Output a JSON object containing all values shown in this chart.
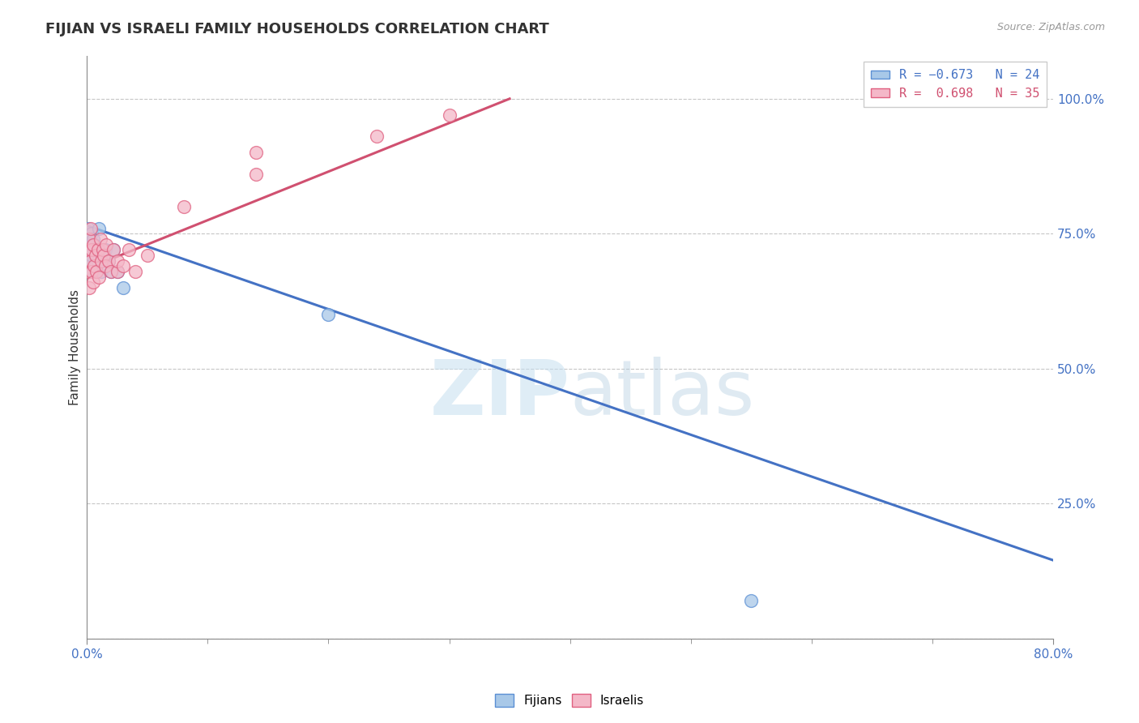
{
  "title": "FIJIAN VS ISRAELI FAMILY HOUSEHOLDS CORRELATION CHART",
  "source": "Source: ZipAtlas.com",
  "ylabel": "Family Households",
  "yticks": [
    0.0,
    0.25,
    0.5,
    0.75,
    1.0
  ],
  "ytick_labels": [
    "",
    "25.0%",
    "50.0%",
    "75.0%",
    "100.0%"
  ],
  "xlim": [
    0.0,
    0.8
  ],
  "ylim": [
    0.0,
    1.08
  ],
  "fijian_color": "#a8c8e8",
  "israeli_color": "#f4b8c8",
  "fijian_edge_color": "#5b8fd4",
  "israeli_edge_color": "#e06080",
  "fijian_line_color": "#4472c4",
  "israeli_line_color": "#d05070",
  "fijian_R": -0.673,
  "fijian_N": 24,
  "israeli_R": 0.698,
  "israeli_N": 35,
  "fijian_x": [
    0.001,
    0.002,
    0.002,
    0.003,
    0.003,
    0.004,
    0.004,
    0.005,
    0.005,
    0.006,
    0.007,
    0.007,
    0.008,
    0.009,
    0.01,
    0.012,
    0.015,
    0.018,
    0.02,
    0.022,
    0.025,
    0.03,
    0.2,
    0.55
  ],
  "fijian_y": [
    0.76,
    0.74,
    0.72,
    0.73,
    0.7,
    0.75,
    0.71,
    0.74,
    0.68,
    0.73,
    0.71,
    0.69,
    0.72,
    0.7,
    0.76,
    0.68,
    0.72,
    0.7,
    0.68,
    0.72,
    0.68,
    0.65,
    0.6,
    0.07
  ],
  "israeli_x": [
    0.001,
    0.001,
    0.002,
    0.002,
    0.003,
    0.003,
    0.004,
    0.004,
    0.005,
    0.005,
    0.006,
    0.007,
    0.008,
    0.009,
    0.01,
    0.011,
    0.012,
    0.013,
    0.014,
    0.015,
    0.016,
    0.018,
    0.02,
    0.022,
    0.025,
    0.025,
    0.03,
    0.035,
    0.04,
    0.05,
    0.08,
    0.14,
    0.14,
    0.24,
    0.3
  ],
  "israeli_y": [
    0.68,
    0.72,
    0.65,
    0.74,
    0.7,
    0.76,
    0.68,
    0.72,
    0.66,
    0.73,
    0.69,
    0.71,
    0.68,
    0.72,
    0.67,
    0.74,
    0.7,
    0.72,
    0.71,
    0.69,
    0.73,
    0.7,
    0.68,
    0.72,
    0.68,
    0.7,
    0.69,
    0.72,
    0.68,
    0.71,
    0.8,
    0.86,
    0.9,
    0.93,
    0.97
  ],
  "blue_line_x0": 0.0,
  "blue_line_y0": 0.765,
  "blue_line_x1": 0.8,
  "blue_line_y1": 0.145,
  "pink_line_x0": 0.0,
  "pink_line_y0": 0.685,
  "pink_line_x1": 0.35,
  "pink_line_y1": 1.0
}
